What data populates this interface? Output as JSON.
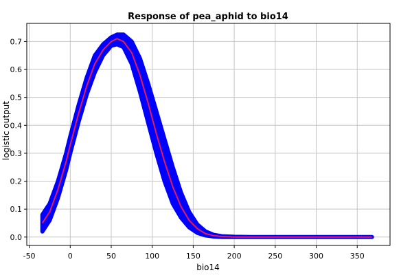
{
  "chart_data": {
    "type": "line",
    "title": "Response of pea_aphid to bio14",
    "xlabel": "bio14",
    "ylabel": "logistic output",
    "xlim": [
      -53,
      390
    ],
    "ylim": [
      -0.03,
      0.765
    ],
    "xticks": [
      -50,
      0,
      50,
      100,
      150,
      200,
      250,
      300,
      350
    ],
    "yticks": [
      0.0,
      0.1,
      0.2,
      0.3,
      0.4,
      0.5,
      0.6,
      0.7
    ],
    "grid": true,
    "legend": "none",
    "colors": {
      "mean": "#e8185a",
      "band": "#0000ff"
    },
    "series": [
      {
        "role": "mean",
        "x": [
          -34,
          -25,
          -15,
          -5,
          0,
          10,
          20,
          30,
          40,
          50,
          57,
          65,
          75,
          85,
          95,
          105,
          115,
          125,
          135,
          145,
          155,
          165,
          175,
          185,
          200,
          220,
          250,
          300,
          368
        ],
        "y": [
          0.05,
          0.09,
          0.17,
          0.27,
          0.33,
          0.44,
          0.54,
          0.62,
          0.67,
          0.7,
          0.71,
          0.7,
          0.66,
          0.58,
          0.48,
          0.37,
          0.27,
          0.18,
          0.11,
          0.06,
          0.03,
          0.012,
          0.005,
          0.002,
          0.0,
          0.0,
          0.0,
          0.0,
          0.0
        ]
      },
      {
        "role": "upper",
        "x": [
          -34,
          -25,
          -15,
          -5,
          0,
          10,
          20,
          30,
          40,
          50,
          57,
          65,
          75,
          85,
          95,
          105,
          115,
          125,
          135,
          145,
          155,
          165,
          175,
          185,
          200,
          220,
          250,
          300,
          368
        ],
        "y": [
          0.08,
          0.12,
          0.2,
          0.3,
          0.36,
          0.47,
          0.57,
          0.65,
          0.69,
          0.715,
          0.725,
          0.725,
          0.7,
          0.64,
          0.55,
          0.45,
          0.35,
          0.25,
          0.16,
          0.09,
          0.045,
          0.02,
          0.008,
          0.003,
          0.001,
          0.0,
          0.0,
          0.0,
          0.0
        ]
      },
      {
        "role": "lower",
        "x": [
          -34,
          -25,
          -15,
          -5,
          0,
          10,
          20,
          30,
          40,
          50,
          57,
          65,
          75,
          85,
          95,
          105,
          115,
          125,
          135,
          145,
          155,
          165,
          175,
          185,
          200,
          220,
          250,
          300,
          368
        ],
        "y": [
          0.02,
          0.06,
          0.14,
          0.24,
          0.3,
          0.41,
          0.51,
          0.59,
          0.65,
          0.685,
          0.69,
          0.68,
          0.62,
          0.52,
          0.41,
          0.3,
          0.2,
          0.12,
          0.07,
          0.035,
          0.015,
          0.006,
          0.002,
          0.0,
          0.0,
          0.0,
          0.0,
          0.0,
          0.0
        ]
      }
    ]
  }
}
